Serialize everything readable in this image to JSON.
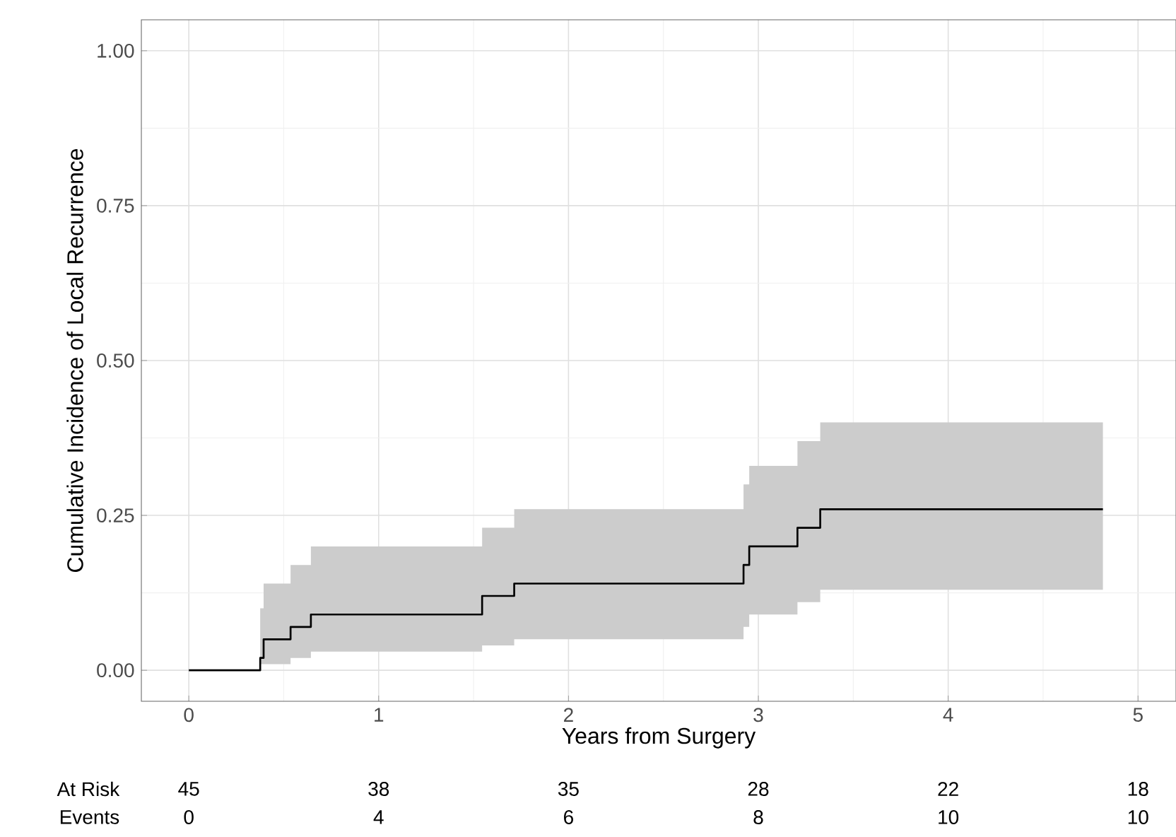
{
  "chart_data": {
    "type": "step",
    "xlabel": "Years from Surgery",
    "ylabel": "Cumulative Incidence of Local Recurrence",
    "series": [
      {
        "color": "#000000",
        "x": [
          0,
          0.376,
          0.394,
          0.536,
          0.643,
          1.545,
          1.714,
          2.922,
          2.952,
          3.206,
          3.326,
          4.815
        ],
        "values": [
          0,
          0.02,
          0.05,
          0.07,
          0.09,
          0.12,
          0.14,
          0.17,
          0.2,
          0.23,
          0.26,
          0.26
        ],
        "lower": [
          null,
          0.01,
          0.01,
          0.02,
          0.03,
          0.04,
          0.05,
          0.07,
          0.09,
          0.11,
          0.13,
          0.13
        ],
        "upper": [
          null,
          0.1,
          0.14,
          0.17,
          0.2,
          0.23,
          0.26,
          0.3,
          0.33,
          0.37,
          0.4,
          0.4
        ]
      }
    ],
    "xlim": [
      -0.25,
      5.2
    ],
    "ylim": [
      -0.05,
      1.05
    ],
    "xticks": [
      0,
      1,
      2,
      3,
      4,
      5
    ],
    "yticks": [
      {
        "value": 0,
        "label": "0.00"
      },
      {
        "value": 0.25,
        "label": "0.25"
      },
      {
        "value": 0.5,
        "label": "0.50"
      },
      {
        "value": 0.75,
        "label": "0.75"
      },
      {
        "value": 1,
        "label": "1.00"
      }
    ],
    "grid": true,
    "annotations": [
      "At Risk",
      "45",
      "38",
      "35",
      "28",
      "22",
      "18",
      "Events",
      "0",
      "4",
      "6",
      "8",
      "10",
      "10"
    ]
  }
}
